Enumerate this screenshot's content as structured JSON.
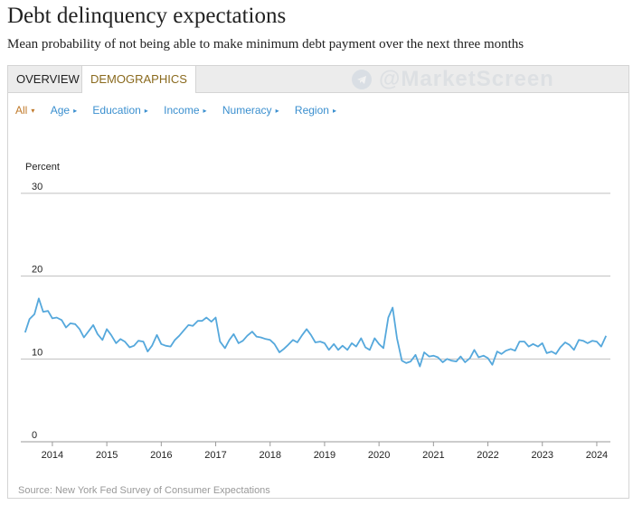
{
  "page": {
    "title": "Debt delinquency expectations",
    "subtitle": "Mean probability of not being able to make minimum debt payment over the next three months",
    "source": "Source: New York Fed Survey of Consumer Expectations",
    "watermark": "@MarketScreen"
  },
  "tabs": [
    {
      "label": "OVERVIEW",
      "active": false
    },
    {
      "label": "DEMOGRAPHICS",
      "active": true
    }
  ],
  "filters": [
    {
      "label": "All",
      "caret": "▾",
      "active": true
    },
    {
      "label": "Age",
      "caret": "▸",
      "active": false
    },
    {
      "label": "Education",
      "caret": "▸",
      "active": false
    },
    {
      "label": "Income",
      "caret": "▸",
      "active": false
    },
    {
      "label": "Numeracy",
      "caret": "▸",
      "active": false
    },
    {
      "label": "Region",
      "caret": "▸",
      "active": false
    }
  ],
  "colors": {
    "line": "#55a8dc",
    "grid": "#bfbfbf",
    "active_tab_text": "#8a6a1e",
    "filter_link": "#3a8fcf",
    "filter_active": "#c0792a"
  },
  "chart_data": {
    "type": "line",
    "title": "",
    "xlabel": "",
    "ylabel": "Percent",
    "ylim": [
      0,
      30
    ],
    "xlim": [
      2013.42,
      2024.25
    ],
    "yticks": [
      0,
      10,
      20,
      30
    ],
    "xticks": [
      "2014",
      "2015",
      "2016",
      "2017",
      "2018",
      "2019",
      "2020",
      "2021",
      "2022",
      "2023",
      "2024"
    ],
    "grid": true,
    "series": [
      {
        "name": "All",
        "x": [
          2013.5,
          2013.58,
          2013.67,
          2013.75,
          2013.83,
          2013.92,
          2014.0,
          2014.08,
          2014.17,
          2014.25,
          2014.33,
          2014.42,
          2014.5,
          2014.58,
          2014.67,
          2014.75,
          2014.83,
          2014.92,
          2015.0,
          2015.08,
          2015.17,
          2015.25,
          2015.33,
          2015.42,
          2015.5,
          2015.58,
          2015.67,
          2015.75,
          2015.83,
          2015.92,
          2016.0,
          2016.08,
          2016.17,
          2016.25,
          2016.33,
          2016.42,
          2016.5,
          2016.58,
          2016.67,
          2016.75,
          2016.83,
          2016.92,
          2017.0,
          2017.08,
          2017.17,
          2017.25,
          2017.33,
          2017.42,
          2017.5,
          2017.58,
          2017.67,
          2017.75,
          2017.83,
          2017.92,
          2018.0,
          2018.08,
          2018.17,
          2018.25,
          2018.33,
          2018.42,
          2018.5,
          2018.58,
          2018.67,
          2018.75,
          2018.83,
          2018.92,
          2019.0,
          2019.08,
          2019.17,
          2019.25,
          2019.33,
          2019.42,
          2019.5,
          2019.58,
          2019.67,
          2019.75,
          2019.83,
          2019.92,
          2020.0,
          2020.08,
          2020.17,
          2020.25,
          2020.33,
          2020.42,
          2020.5,
          2020.58,
          2020.67,
          2020.75,
          2020.83,
          2020.92,
          2021.0,
          2021.08,
          2021.17,
          2021.25,
          2021.33,
          2021.42,
          2021.5,
          2021.58,
          2021.67,
          2021.75,
          2021.83,
          2021.92,
          2022.0,
          2022.08,
          2022.17,
          2022.25,
          2022.33,
          2022.42,
          2022.5,
          2022.58,
          2022.67,
          2022.75,
          2022.83,
          2022.92,
          2023.0,
          2023.08,
          2023.17,
          2023.25,
          2023.33,
          2023.42,
          2023.5,
          2023.58,
          2023.67,
          2023.75,
          2023.83,
          2023.92,
          2024.0,
          2024.08,
          2024.17
        ],
        "values": [
          13.2,
          14.8,
          15.4,
          17.3,
          15.7,
          15.8,
          14.9,
          15.0,
          14.7,
          13.8,
          14.3,
          14.2,
          13.6,
          12.6,
          13.4,
          14.1,
          13.0,
          12.3,
          13.6,
          12.9,
          11.9,
          12.4,
          12.1,
          11.4,
          11.6,
          12.2,
          12.1,
          10.9,
          11.6,
          12.9,
          11.8,
          11.6,
          11.5,
          12.3,
          12.8,
          13.5,
          14.1,
          14.0,
          14.6,
          14.6,
          15.0,
          14.5,
          15.0,
          12.1,
          11.3,
          12.3,
          13.0,
          11.9,
          12.2,
          12.8,
          13.3,
          12.7,
          12.6,
          12.4,
          12.3,
          11.8,
          10.8,
          11.2,
          11.7,
          12.3,
          12.0,
          12.8,
          13.6,
          12.9,
          12.0,
          12.1,
          11.9,
          11.1,
          11.8,
          11.1,
          11.6,
          11.1,
          11.9,
          11.5,
          12.5,
          11.4,
          11.1,
          12.5,
          11.8,
          11.3,
          15.0,
          16.2,
          12.5,
          9.8,
          9.5,
          9.7,
          10.5,
          9.1,
          10.8,
          10.3,
          10.4,
          10.2,
          9.6,
          10.0,
          9.8,
          9.7,
          10.3,
          9.6,
          10.1,
          11.1,
          10.2,
          10.4,
          10.1,
          9.3,
          10.9,
          10.6,
          11.0,
          11.2,
          11.0,
          12.1,
          12.1,
          11.5,
          11.8,
          11.5,
          11.9,
          10.7,
          10.9,
          10.6,
          11.4,
          12.0,
          11.7,
          11.1,
          12.3,
          12.2,
          11.9,
          12.2,
          12.1,
          11.5,
          12.8
        ]
      }
    ]
  }
}
